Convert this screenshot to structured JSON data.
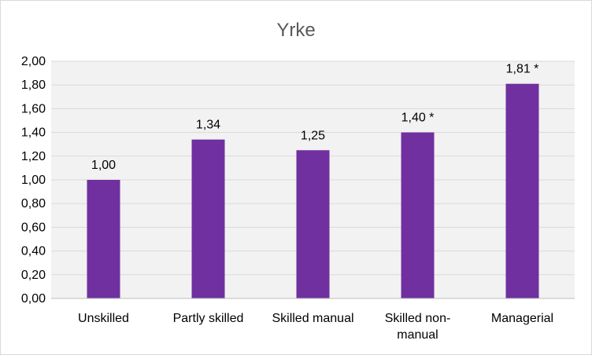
{
  "chart_data": {
    "type": "bar",
    "title": "Yrke",
    "categories": [
      "Unskilled",
      "Partly skilled",
      "Skilled manual",
      "Skilled non-manual",
      "Managerial"
    ],
    "category_lines": [
      [
        "Unskilled"
      ],
      [
        "Partly skilled"
      ],
      [
        "Skilled manual"
      ],
      [
        "Skilled non-",
        "manual"
      ],
      [
        "Managerial"
      ]
    ],
    "values": [
      1.0,
      1.34,
      1.25,
      1.4,
      1.81
    ],
    "data_labels": [
      "1,00",
      "1,34",
      "1,25",
      "1,40 *",
      "1,81 *"
    ],
    "ylim": [
      0,
      2
    ],
    "yticks": [
      0,
      0.2,
      0.4,
      0.6,
      0.8,
      1.0,
      1.2,
      1.4,
      1.6,
      1.8,
      2.0
    ],
    "ytick_labels": [
      "0,00",
      "0,20",
      "0,40",
      "0,60",
      "0,80",
      "1,00",
      "1,20",
      "1,40",
      "1,60",
      "1,80",
      "2,00"
    ],
    "xlabel": "",
    "ylabel": "",
    "grid": true,
    "legend": "none",
    "colors": {
      "bar": "#7030a0",
      "plot_background": "#f2f2f2",
      "gridline": "#d9d9d9",
      "axis": "#bfbfbf",
      "title": "#595959"
    }
  }
}
